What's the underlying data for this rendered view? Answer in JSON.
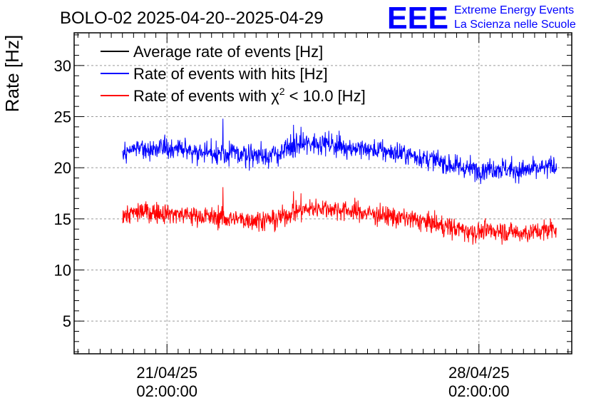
{
  "chart_data": {
    "type": "line",
    "title": "BOLO-02 2025-04-20--2025-04-29",
    "ylabel": "Rate [Hz]",
    "xlabel": "",
    "ylim": [
      1.8,
      33.2
    ],
    "yticks": [
      5,
      10,
      15,
      20,
      25,
      30
    ],
    "ytick_labels": [
      "5",
      "10",
      "15",
      "20",
      "25",
      "30"
    ],
    "xlim": [
      "2025-04-19T00:00:00",
      "2025-04-30T04:00:00"
    ],
    "xticks": [
      "2025-04-21T02:00:00",
      "2025-04-28T02:00:00"
    ],
    "xtick_labels": [
      {
        "date": "21/04/25",
        "time": "02:00:00"
      },
      {
        "date": "28/04/25",
        "time": "02:00:00"
      }
    ],
    "grid": true,
    "legend_position": "top-left",
    "series": [
      {
        "name": "Average rate of events [Hz]",
        "color": "#000000",
        "x": [],
        "y": []
      },
      {
        "name": "Rate of events with hits [Hz]",
        "color": "#0000ff",
        "noise": 0.75,
        "x": [
          "2025-04-20T02:00:00",
          "2025-04-20T12:00:00",
          "2025-04-21T00:00:00",
          "2025-04-21T12:00:00",
          "2025-04-22T00:00:00",
          "2025-04-22T12:00:00",
          "2025-04-23T00:00:00",
          "2025-04-23T12:00:00",
          "2025-04-24T00:00:00",
          "2025-04-24T12:00:00",
          "2025-04-25T00:00:00",
          "2025-04-25T12:00:00",
          "2025-04-26T00:00:00",
          "2025-04-26T12:00:00",
          "2025-04-27T00:00:00",
          "2025-04-27T12:00:00",
          "2025-04-28T00:00:00",
          "2025-04-28T12:00:00",
          "2025-04-29T00:00:00",
          "2025-04-29T12:00:00",
          "2025-04-29T20:00:00"
        ],
        "y": [
          21.6,
          22.0,
          21.9,
          21.7,
          21.5,
          21.4,
          21.3,
          21.2,
          22.2,
          22.5,
          22.1,
          21.8,
          21.6,
          21.3,
          20.8,
          20.2,
          19.8,
          20.0,
          19.7,
          19.9,
          20.2
        ],
        "spikes": [
          {
            "x": "2025-04-22T08:00:00",
            "y": 24.8
          },
          {
            "x": "2025-04-23T22:00:00",
            "y": 24.2
          },
          {
            "x": "2025-04-24T02:00:00",
            "y": 24.0
          }
        ]
      },
      {
        "name": "Rate of events with χ² < 10.0 [Hz]",
        "color": "#ff0000",
        "noise": 0.7,
        "x": [
          "2025-04-20T02:00:00",
          "2025-04-20T12:00:00",
          "2025-04-21T00:00:00",
          "2025-04-21T12:00:00",
          "2025-04-22T00:00:00",
          "2025-04-22T12:00:00",
          "2025-04-23T00:00:00",
          "2025-04-23T12:00:00",
          "2025-04-24T00:00:00",
          "2025-04-24T12:00:00",
          "2025-04-25T00:00:00",
          "2025-04-25T12:00:00",
          "2025-04-26T00:00:00",
          "2025-04-26T12:00:00",
          "2025-04-27T00:00:00",
          "2025-04-27T12:00:00",
          "2025-04-28T00:00:00",
          "2025-04-28T12:00:00",
          "2025-04-29T00:00:00",
          "2025-04-29T12:00:00",
          "2025-04-29T20:00:00"
        ],
        "y": [
          15.3,
          15.7,
          15.6,
          15.4,
          15.2,
          15.0,
          14.9,
          14.9,
          15.8,
          16.1,
          15.9,
          15.6,
          15.3,
          15.0,
          14.6,
          14.1,
          13.7,
          13.9,
          13.6,
          13.8,
          14.2
        ],
        "spikes": [
          {
            "x": "2025-04-22T08:00:00",
            "y": 18.1
          },
          {
            "x": "2025-04-23T22:00:00",
            "y": 17.7
          },
          {
            "x": "2025-04-24T02:00:00",
            "y": 17.5
          }
        ]
      }
    ]
  },
  "logo": {
    "text": "EEE",
    "line1": "Extreme Energy Events",
    "line2": "La Scienza nelle Scuole",
    "color": "#0000ff"
  }
}
